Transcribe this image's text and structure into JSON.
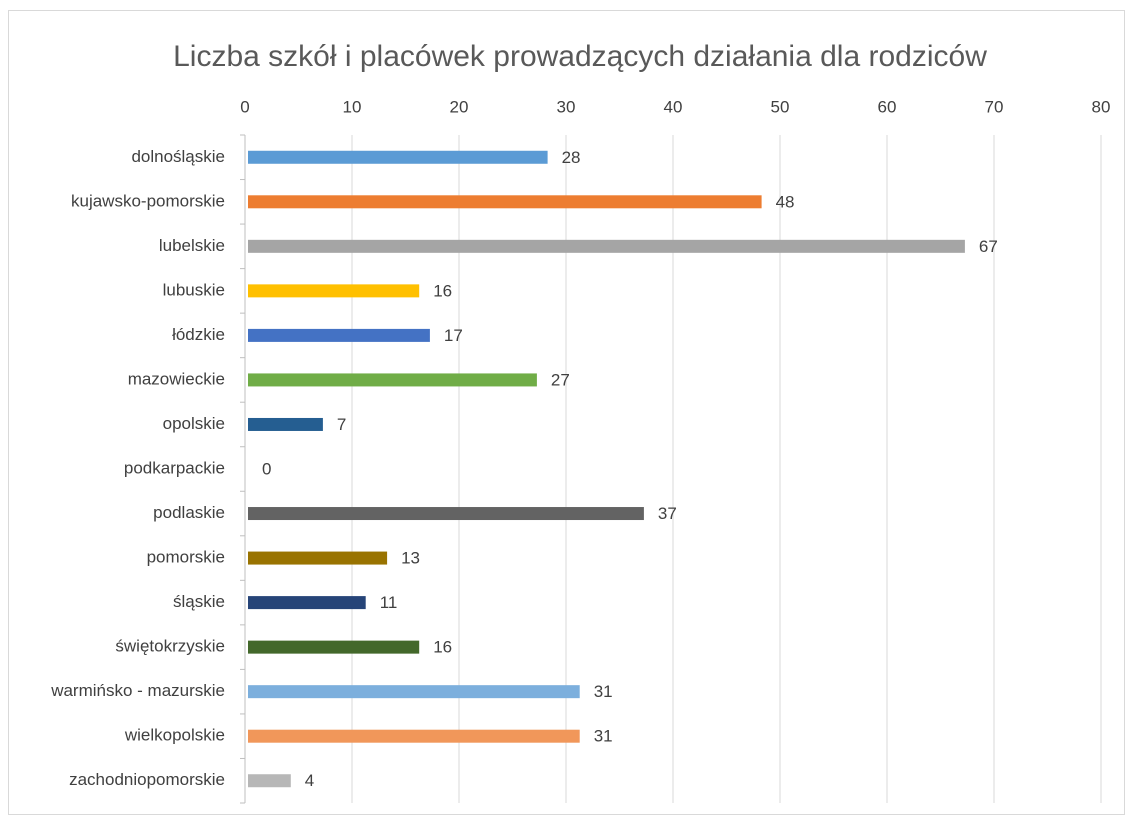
{
  "chart_data": {
    "type": "hbar",
    "title": "Liczba szkół i placówek prowadzących działania dla rodziców",
    "categories": [
      "dolnośląskie",
      "kujawsko-pomorskie",
      "lubelskie",
      "lubuskie",
      "łódzkie",
      "mazowieckie",
      "opolskie",
      "podkarpackie",
      "podlaskie",
      "pomorskie",
      "śląskie",
      "świętokrzyskie",
      "warmińsko - mazurskie",
      "wielkopolskie",
      "zachodniopomorskie"
    ],
    "values": [
      28,
      48,
      67,
      16,
      17,
      27,
      7,
      0,
      37,
      13,
      11,
      16,
      31,
      31,
      4
    ],
    "colors": [
      "#5b9bd5",
      "#ed7d31",
      "#a5a5a5",
      "#ffc000",
      "#4472c4",
      "#70ad47",
      "#255e91",
      "#9e480e",
      "#636363",
      "#997300",
      "#264478",
      "#43682b",
      "#7cafdd",
      "#f1975a",
      "#b7b7b7"
    ],
    "xlim": [
      0,
      80
    ],
    "xticks": [
      0,
      10,
      20,
      30,
      40,
      50,
      60,
      70,
      80
    ],
    "grid": true
  }
}
